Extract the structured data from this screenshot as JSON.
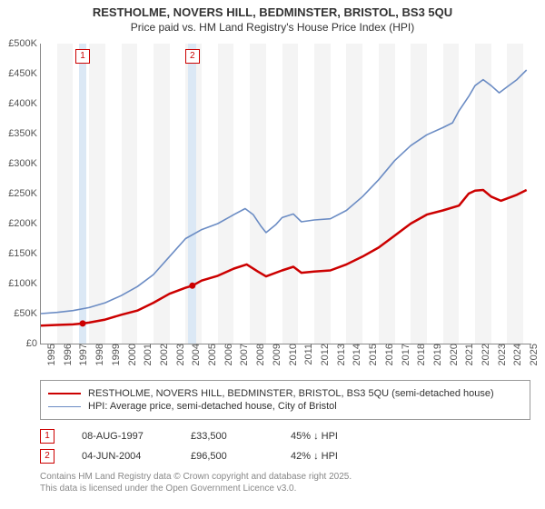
{
  "title_line1": "RESTHOLME, NOVERS HILL, BEDMINSTER, BRISTOL, BS3 5QU",
  "title_line2": "Price paid vs. HM Land Registry's House Price Index (HPI)",
  "chart": {
    "type": "line",
    "background_color": "#ffffff",
    "grid_band_color": "#f4f4f4",
    "marker_band_color": "#dbe8f5",
    "axis_color": "#888888",
    "label_color": "#555555",
    "label_fontsize": 11,
    "xlim": [
      1995,
      2025.5
    ],
    "ylim": [
      0,
      500000
    ],
    "ytick_step": 50000,
    "ytick_labels": [
      "£0",
      "£50K",
      "£100K",
      "£150K",
      "£200K",
      "£250K",
      "£300K",
      "£350K",
      "£400K",
      "£450K",
      "£500K"
    ],
    "xtick_step": 1,
    "xtick_years": [
      1995,
      1996,
      1997,
      1998,
      1999,
      2000,
      2001,
      2002,
      2003,
      2004,
      2005,
      2006,
      2007,
      2008,
      2009,
      2010,
      2011,
      2012,
      2013,
      2014,
      2015,
      2016,
      2017,
      2018,
      2019,
      2020,
      2021,
      2022,
      2023,
      2024,
      2025
    ],
    "series": [
      {
        "name": "price_paid",
        "label": "RESTHOLME, NOVERS HILL, BEDMINSTER, BRISTOL, BS3 5QU (semi-detached house)",
        "color": "#cc0000",
        "line_width": 2.5,
        "points": [
          [
            1995.0,
            30000
          ],
          [
            1996.0,
            31000
          ],
          [
            1997.0,
            32000
          ],
          [
            1997.6,
            33500
          ],
          [
            1998.0,
            35000
          ],
          [
            1999.0,
            40000
          ],
          [
            2000.0,
            48000
          ],
          [
            2001.0,
            55000
          ],
          [
            2002.0,
            68000
          ],
          [
            2003.0,
            83000
          ],
          [
            2004.0,
            93000
          ],
          [
            2004.42,
            96500
          ],
          [
            2005.0,
            105000
          ],
          [
            2006.0,
            113000
          ],
          [
            2007.0,
            125000
          ],
          [
            2007.8,
            132000
          ],
          [
            2008.5,
            120000
          ],
          [
            2009.0,
            112000
          ],
          [
            2010.0,
            122000
          ],
          [
            2010.7,
            128000
          ],
          [
            2011.2,
            118000
          ],
          [
            2012.0,
            120000
          ],
          [
            2013.0,
            122000
          ],
          [
            2014.0,
            132000
          ],
          [
            2015.0,
            145000
          ],
          [
            2016.0,
            160000
          ],
          [
            2017.0,
            180000
          ],
          [
            2018.0,
            200000
          ],
          [
            2019.0,
            215000
          ],
          [
            2020.0,
            222000
          ],
          [
            2021.0,
            230000
          ],
          [
            2021.6,
            250000
          ],
          [
            2022.0,
            255000
          ],
          [
            2022.5,
            256000
          ],
          [
            2023.0,
            245000
          ],
          [
            2023.6,
            238000
          ],
          [
            2024.0,
            242000
          ],
          [
            2024.6,
            248000
          ],
          [
            2025.2,
            256000
          ]
        ]
      },
      {
        "name": "hpi",
        "label": "HPI: Average price, semi-detached house, City of Bristol",
        "color": "#6b8cc4",
        "line_width": 1.6,
        "points": [
          [
            1995.0,
            50000
          ],
          [
            1996.0,
            52000
          ],
          [
            1997.0,
            55000
          ],
          [
            1998.0,
            60000
          ],
          [
            1999.0,
            68000
          ],
          [
            2000.0,
            80000
          ],
          [
            2001.0,
            95000
          ],
          [
            2002.0,
            115000
          ],
          [
            2003.0,
            145000
          ],
          [
            2004.0,
            175000
          ],
          [
            2005.0,
            190000
          ],
          [
            2006.0,
            200000
          ],
          [
            2007.0,
            215000
          ],
          [
            2007.7,
            225000
          ],
          [
            2008.2,
            215000
          ],
          [
            2008.7,
            195000
          ],
          [
            2009.0,
            185000
          ],
          [
            2009.6,
            198000
          ],
          [
            2010.0,
            210000
          ],
          [
            2010.7,
            216000
          ],
          [
            2011.2,
            203000
          ],
          [
            2012.0,
            206000
          ],
          [
            2013.0,
            208000
          ],
          [
            2014.0,
            222000
          ],
          [
            2015.0,
            245000
          ],
          [
            2016.0,
            273000
          ],
          [
            2017.0,
            305000
          ],
          [
            2018.0,
            330000
          ],
          [
            2019.0,
            348000
          ],
          [
            2020.0,
            360000
          ],
          [
            2020.6,
            368000
          ],
          [
            2021.0,
            388000
          ],
          [
            2021.6,
            412000
          ],
          [
            2022.0,
            430000
          ],
          [
            2022.5,
            440000
          ],
          [
            2023.0,
            430000
          ],
          [
            2023.5,
            418000
          ],
          [
            2024.0,
            428000
          ],
          [
            2024.6,
            440000
          ],
          [
            2025.2,
            456000
          ]
        ]
      }
    ],
    "price_markers": [
      {
        "num": "1",
        "year": 1997.6,
        "price": 33500
      },
      {
        "num": "2",
        "year": 2004.42,
        "price": 96500
      }
    ]
  },
  "legend": {
    "border_color": "#999999"
  },
  "transactions": [
    {
      "num": "1",
      "date": "08-AUG-1997",
      "price": "£33,500",
      "delta": "45% ↓ HPI"
    },
    {
      "num": "2",
      "date": "04-JUN-2004",
      "price": "£96,500",
      "delta": "42% ↓ HPI"
    }
  ],
  "attribution_line1": "Contains HM Land Registry data © Crown copyright and database right 2025.",
  "attribution_line2": "This data is licensed under the Open Government Licence v3.0."
}
